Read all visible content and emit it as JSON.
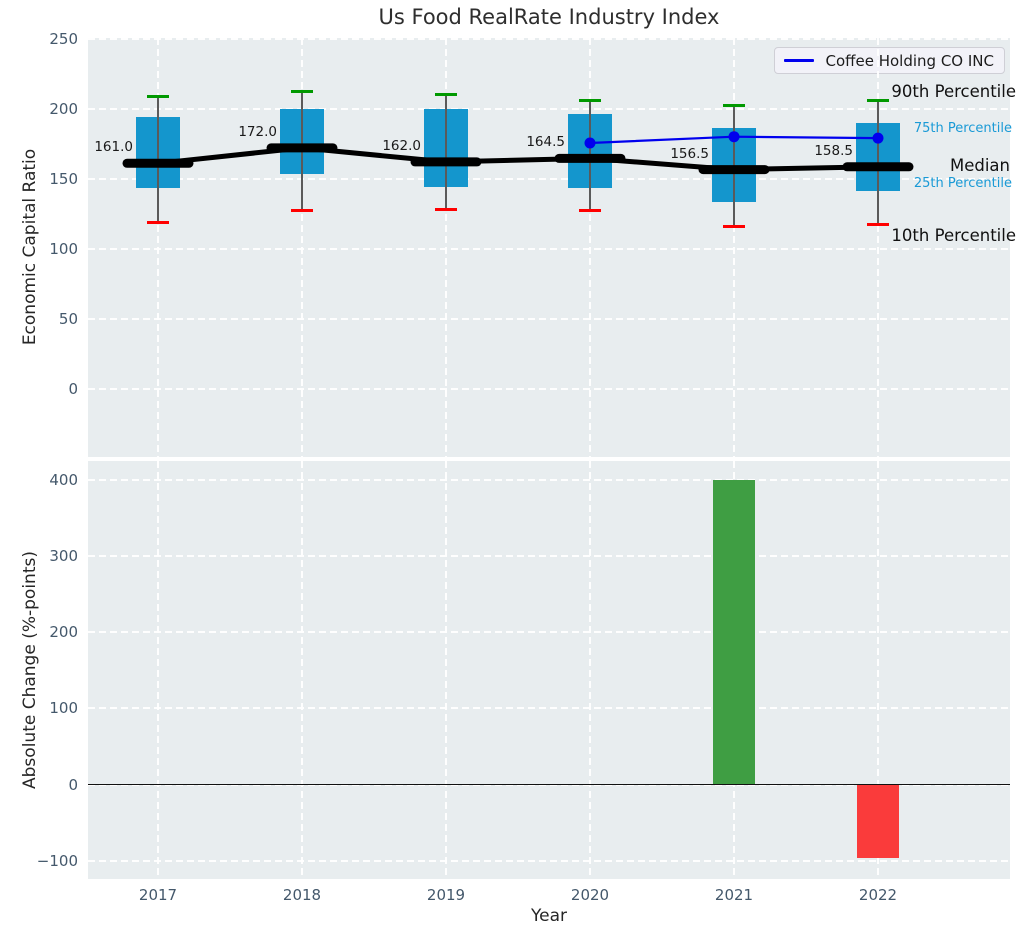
{
  "title": "Us Food RealRate Industry Index",
  "legend": {
    "label": "Coffee Holding CO INC"
  },
  "right_labels": {
    "p90": "90th Percentile",
    "p75": "75th Percentile",
    "median": "Median",
    "p25": "25th Percentile",
    "p10": "10th Percentile"
  },
  "colors": {
    "plot_bg": "#E8EDEF",
    "grid": "#FFFFFF",
    "tick_label": "#44586B",
    "box_fill": "#1496CD",
    "percentile_label": "#1A9AD6",
    "whisker": "#5A5A5A",
    "cap_top_green": "#009900",
    "cap_bottom_red": "#FF0000",
    "median_line": "#000000",
    "company_line": "#0000EE",
    "bar_positive": "#3F9E43",
    "bar_negative": "#FA3B3B",
    "zero_line": "#111111"
  },
  "chart_data": [
    {
      "type": "boxplot",
      "title": "Us Food RealRate Industry Index",
      "ylabel": "Economic Capital Ratio",
      "x": [
        "2017",
        "2018",
        "2019",
        "2020",
        "2021",
        "2022"
      ],
      "ylim": [
        -48.5,
        250.5
      ],
      "yticks": [
        250,
        200,
        150,
        100,
        50,
        0
      ],
      "grid": true,
      "legend_position": "upper right",
      "series": [
        {
          "name": "10th Percentile",
          "values": [
            119,
            127,
            128,
            127,
            116,
            117
          ]
        },
        {
          "name": "25th Percentile",
          "values": [
            143,
            153,
            144,
            143,
            133,
            141
          ]
        },
        {
          "name": "Median",
          "values": [
            161.0,
            172.0,
            162.0,
            164.5,
            156.5,
            158.5
          ]
        },
        {
          "name": "75th Percentile",
          "values": [
            194,
            200,
            200,
            196,
            186,
            190
          ]
        },
        {
          "name": "90th Percentile",
          "values": [
            209,
            212,
            210,
            206,
            202,
            206
          ]
        },
        {
          "name": "Coffee Holding CO INC",
          "values": [
            null,
            null,
            null,
            175.5,
            180.0,
            179.0
          ]
        }
      ],
      "median_labels": [
        "161.0",
        "172.0",
        "162.0",
        "164.5",
        "156.5",
        "158.5"
      ]
    },
    {
      "type": "bar",
      "ylabel": "Absolute Change (%-points)",
      "xlabel": "Year",
      "categories": [
        "2017",
        "2018",
        "2019",
        "2020",
        "2021",
        "2022"
      ],
      "values": [
        null,
        null,
        null,
        null,
        399,
        -97
      ],
      "yticks": [
        400,
        300,
        200,
        100,
        0,
        -100
      ],
      "ylim": [
        -123.5,
        424.5
      ],
      "grid": true
    }
  ]
}
